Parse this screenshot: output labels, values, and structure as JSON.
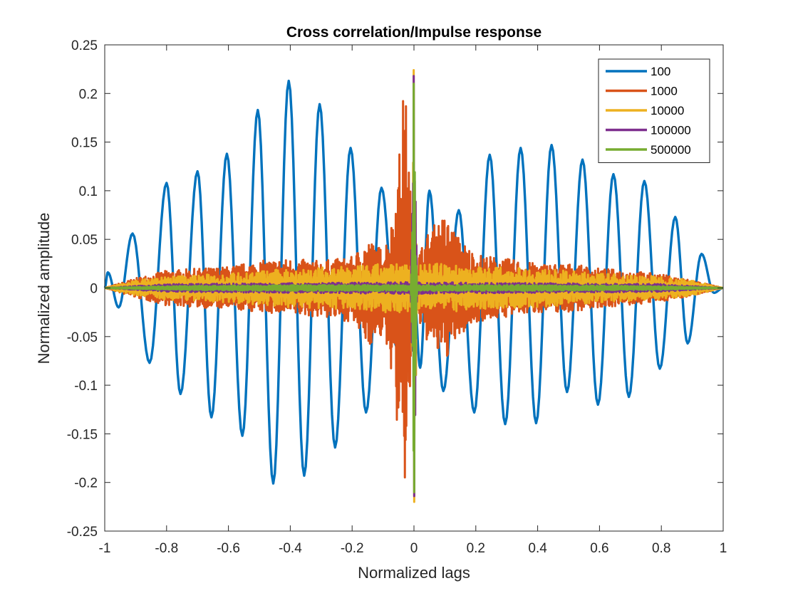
{
  "chart_data": {
    "type": "line",
    "title": "Cross correlation/Impulse response",
    "xlabel": "Normalized lags",
    "ylabel": "Normalized amplitude",
    "xlim": [
      -1,
      1
    ],
    "ylim": [
      -0.25,
      0.25
    ],
    "x_ticks": [
      "-1",
      "-0.8",
      "-0.6",
      "-0.4",
      "-0.2",
      "0",
      "0.2",
      "0.4",
      "0.6",
      "0.8",
      "1"
    ],
    "y_ticks": [
      "0.25",
      "0.2",
      "0.15",
      "0.1",
      "0.05",
      "0",
      "-0.05",
      "-0.1",
      "-0.15",
      "-0.2",
      "-0.25"
    ],
    "grid": false,
    "legend_position": "top-right",
    "series": [
      {
        "name": "100",
        "color": "#0072BD",
        "signal": "oscillating",
        "x_peaks": [
          -0.99,
          -0.91,
          -0.8,
          -0.7,
          -0.605,
          -0.505,
          -0.405,
          -0.305,
          -0.205,
          -0.105,
          0.0,
          0.05,
          0.145,
          0.245,
          0.345,
          0.445,
          0.545,
          0.645,
          0.745,
          0.845,
          0.93
        ],
        "peaks": [
          0.016,
          0.056,
          0.108,
          0.12,
          0.138,
          0.183,
          0.213,
          0.189,
          0.144,
          0.103,
          0.0,
          0.1,
          0.08,
          0.137,
          0.144,
          0.147,
          0.132,
          0.117,
          0.11,
          0.073,
          0.035
        ],
        "x_troughs": [
          -0.955,
          -0.855,
          -0.755,
          -0.655,
          -0.555,
          -0.455,
          -0.355,
          -0.255,
          -0.155,
          -0.055,
          0.02,
          0.095,
          0.195,
          0.295,
          0.395,
          0.495,
          0.595,
          0.695,
          0.795,
          0.885,
          0.97
        ],
        "troughs": [
          -0.02,
          -0.077,
          -0.109,
          -0.133,
          -0.152,
          -0.201,
          -0.193,
          -0.164,
          -0.128,
          -0.062,
          -0.082,
          -0.106,
          -0.128,
          -0.14,
          -0.139,
          -0.107,
          -0.12,
          -0.112,
          -0.083,
          -0.057,
          -0.005
        ]
      },
      {
        "name": "1000",
        "color": "#D95319",
        "signal": "dense_noise",
        "envelope_x": [
          -1,
          -0.9,
          -0.8,
          -0.7,
          -0.6,
          -0.5,
          -0.4,
          -0.3,
          -0.2,
          -0.15,
          -0.1,
          -0.07,
          -0.05,
          -0.03,
          -0.01,
          0,
          0.02,
          0.05,
          0.08,
          0.1,
          0.15,
          0.2,
          0.3,
          0.4,
          0.5,
          0.6,
          0.7,
          0.8,
          0.9,
          1
        ],
        "envelope_upper": [
          0,
          0.01,
          0.018,
          0.02,
          0.022,
          0.028,
          0.03,
          0.028,
          0.032,
          0.05,
          0.04,
          0.07,
          0.13,
          0.22,
          0.1,
          0.02,
          0.04,
          0.06,
          0.07,
          0.075,
          0.05,
          0.035,
          0.03,
          0.025,
          0.025,
          0.02,
          0.018,
          0.014,
          0.008,
          0
        ],
        "envelope_lower": [
          0,
          -0.01,
          -0.018,
          -0.02,
          -0.022,
          -0.025,
          -0.028,
          -0.03,
          -0.035,
          -0.06,
          -0.05,
          -0.09,
          -0.16,
          -0.21,
          -0.1,
          -0.02,
          -0.04,
          -0.06,
          -0.07,
          -0.075,
          -0.05,
          -0.035,
          -0.03,
          -0.025,
          -0.025,
          -0.02,
          -0.018,
          -0.014,
          -0.008,
          0
        ]
      },
      {
        "name": "10000",
        "color": "#EDB120",
        "signal": "dense_noise",
        "envelope_x": [
          -1,
          -0.9,
          -0.8,
          -0.6,
          -0.4,
          -0.2,
          -0.1,
          -0.01,
          0,
          0.01,
          0.1,
          0.2,
          0.4,
          0.6,
          0.8,
          0.9,
          1
        ],
        "envelope_upper": [
          0,
          0.008,
          0.012,
          0.015,
          0.02,
          0.022,
          0.025,
          0.025,
          0.224,
          0.025,
          0.025,
          0.022,
          0.02,
          0.015,
          0.012,
          0.008,
          0
        ],
        "envelope_lower": [
          0,
          -0.008,
          -0.012,
          -0.015,
          -0.02,
          -0.022,
          -0.025,
          -0.025,
          -0.22,
          -0.025,
          -0.025,
          -0.022,
          -0.02,
          -0.015,
          -0.012,
          -0.008,
          0
        ]
      },
      {
        "name": "100000",
        "color": "#7E2F8E",
        "signal": "dense_noise",
        "envelope_x": [
          -1,
          -0.8,
          -0.4,
          -0.01,
          0,
          0.01,
          0.4,
          0.8,
          1
        ],
        "envelope_upper": [
          0,
          0.004,
          0.005,
          0.006,
          0.218,
          0.006,
          0.005,
          0.004,
          0
        ],
        "envelope_lower": [
          0,
          -0.004,
          -0.005,
          -0.006,
          -0.214,
          -0.006,
          -0.005,
          -0.004,
          0
        ]
      },
      {
        "name": "500000",
        "color": "#77AC30",
        "signal": "dense_noise",
        "envelope_x": [
          -1,
          -0.8,
          -0.4,
          -0.01,
          0,
          0.01,
          0.4,
          0.8,
          1
        ],
        "envelope_upper": [
          0,
          0.002,
          0.003,
          0.003,
          0.21,
          0.003,
          0.003,
          0.002,
          0
        ],
        "envelope_lower": [
          0,
          -0.002,
          -0.003,
          -0.003,
          -0.21,
          -0.003,
          -0.003,
          -0.002,
          0
        ]
      }
    ]
  }
}
